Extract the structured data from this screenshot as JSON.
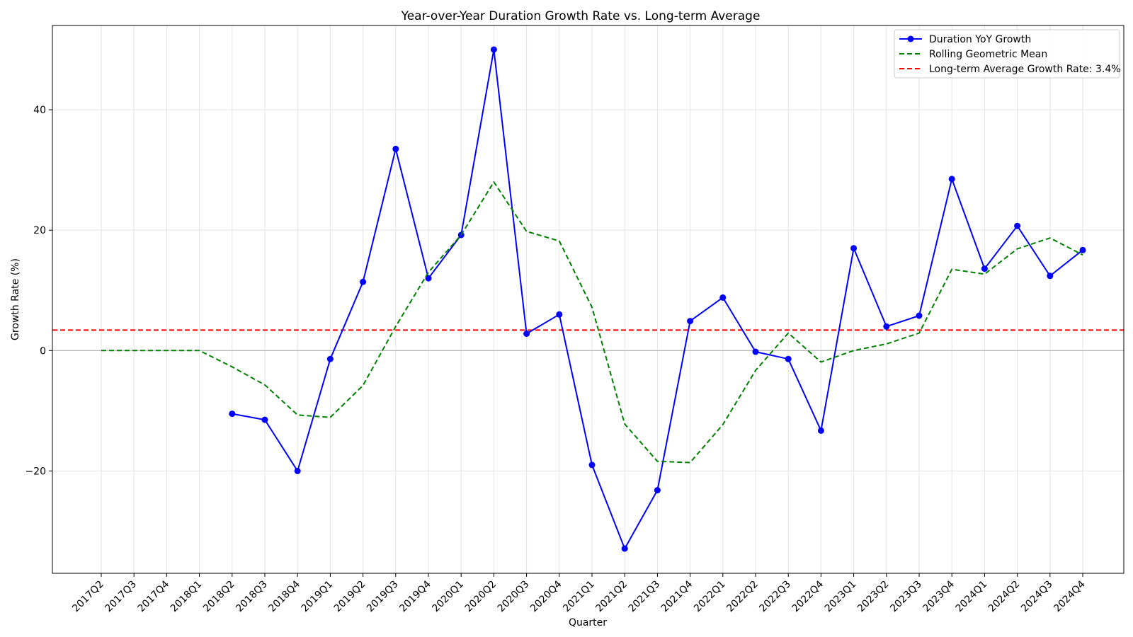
{
  "chart_data": {
    "type": "line",
    "title": "Year-over-Year Duration Growth Rate vs. Long-term Average",
    "xlabel": "Quarter",
    "ylabel": "Growth Rate (%)",
    "categories": [
      "2017Q2",
      "2017Q3",
      "2017Q4",
      "2018Q1",
      "2018Q2",
      "2018Q3",
      "2018Q4",
      "2019Q1",
      "2019Q2",
      "2019Q3",
      "2019Q4",
      "2020Q1",
      "2020Q2",
      "2020Q3",
      "2020Q4",
      "2021Q1",
      "2021Q2",
      "2021Q3",
      "2021Q4",
      "2022Q1",
      "2022Q2",
      "2022Q3",
      "2022Q4",
      "2023Q1",
      "2023Q2",
      "2023Q3",
      "2023Q4",
      "2024Q1",
      "2024Q2",
      "2024Q3",
      "2024Q4"
    ],
    "ylim": [
      -37,
      54
    ],
    "yticks": [
      -20,
      0,
      20,
      40
    ],
    "ytick_labels": [
      "−20",
      "0",
      "20",
      "40"
    ],
    "grid": true,
    "legend_position": "top-right",
    "series": [
      {
        "name": "Duration YoY Growth",
        "color": "#0000ff",
        "style": "solid-markers",
        "values": [
          null,
          null,
          null,
          null,
          -10.5,
          -11.5,
          -20.0,
          -1.4,
          11.4,
          33.5,
          12.0,
          19.2,
          50.0,
          2.8,
          6.0,
          -19.0,
          -32.9,
          -23.2,
          4.9,
          8.8,
          -0.2,
          -1.4,
          -13.3,
          17.0,
          4.0,
          5.8,
          28.5,
          13.6,
          20.7,
          12.4,
          16.7
        ]
      },
      {
        "name": "Rolling Geometric Mean",
        "color": "#008000",
        "style": "dashed",
        "values": [
          0.0,
          0.0,
          0.0,
          0.0,
          -2.7,
          -5.7,
          -10.7,
          -11.1,
          -5.8,
          4.0,
          13.0,
          19.2,
          28.0,
          19.8,
          18.2,
          7.2,
          -12.2,
          -18.4,
          -18.6,
          -12.3,
          -3.3,
          2.9,
          -1.9,
          0.0,
          1.1,
          2.9,
          13.5,
          12.7,
          16.9,
          18.7,
          15.9
        ]
      }
    ],
    "reference_line": {
      "name": "Long-term Average Growth Rate: 3.4%",
      "value": 3.4,
      "color": "#ff0000",
      "style": "dashed"
    },
    "zero_line_color": "#b0b0b0"
  }
}
